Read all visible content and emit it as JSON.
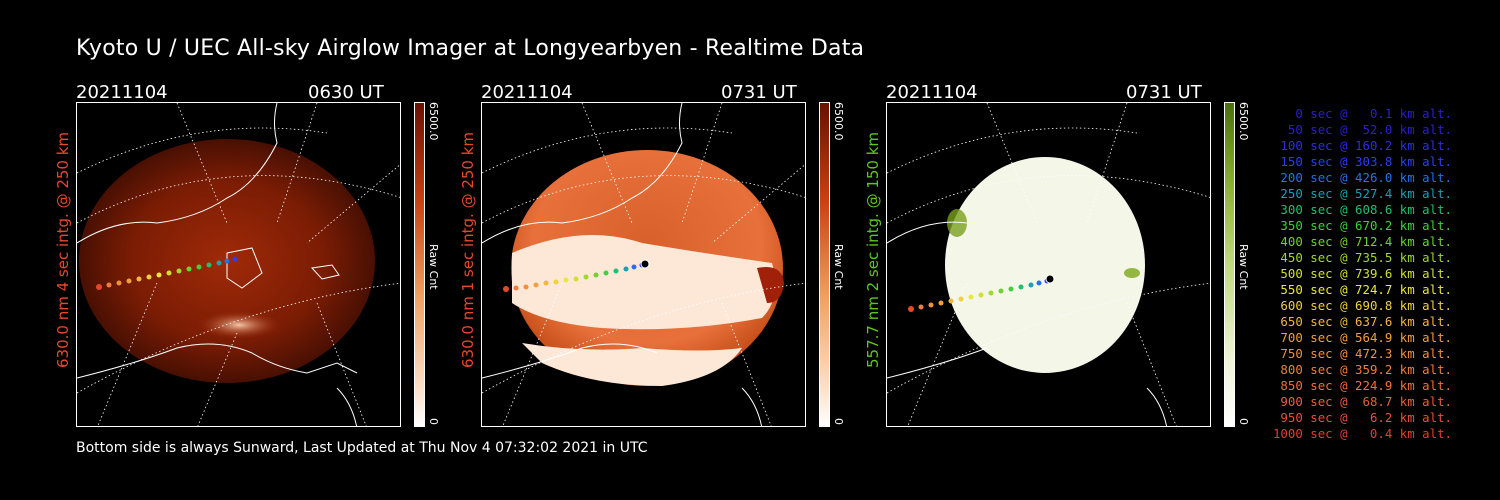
{
  "title": "Kyoto U / UEC All-sky Airglow Imager at Longyearbyen - Realtime Data",
  "footer": "Bottom side is always Sunward, Last Updated at Thu Nov  4 07:32:02 2021 in UTC",
  "panels": [
    {
      "date": "20211104",
      "time": "0630 UT",
      "ylabel": "630.0 nm 4 sec intg. @ 250 km",
      "label_color": "#e8482a",
      "cbar_max": "6500.0",
      "cbar_unit": "Raw Cnt",
      "cbar_min": "0",
      "colormap": "red"
    },
    {
      "date": "20211104",
      "time": "0731 UT",
      "ylabel": "630.0 nm 1 sec intg. @ 250 km",
      "label_color": "#e8482a",
      "cbar_max": "6500.0",
      "cbar_unit": "Raw Cnt",
      "cbar_min": "0",
      "colormap": "red"
    },
    {
      "date": "20211104",
      "time": "0731 UT",
      "ylabel": "557.7 nm 2 sec intg. @ 150 km",
      "label_color": "#5cc81e",
      "cbar_max": "6500.0",
      "cbar_unit": "Raw Cnt",
      "cbar_min": "0",
      "colormap": "green"
    }
  ],
  "legend": [
    {
      "text": "0 sec @   0.1 km alt.",
      "color": "#2a1fcf"
    },
    {
      "text": "50 sec @  52.0 km alt.",
      "color": "#2a1fcf"
    },
    {
      "text": "100 sec @ 160.2 km alt.",
      "color": "#2a2fe0"
    },
    {
      "text": "150 sec @ 303.8 km alt.",
      "color": "#2a3ff0"
    },
    {
      "text": "200 sec @ 426.0 km alt.",
      "color": "#2a6fe8"
    },
    {
      "text": "250 sec @ 527.4 km alt.",
      "color": "#1f9fb0"
    },
    {
      "text": "300 sec @ 608.6 km alt.",
      "color": "#1fbf6f"
    },
    {
      "text": "350 sec @ 670.2 km alt.",
      "color": "#3fcf3f"
    },
    {
      "text": "400 sec @ 712.4 km alt.",
      "color": "#6fd02f"
    },
    {
      "text": "450 sec @ 735.5 km alt.",
      "color": "#9fd82f"
    },
    {
      "text": "500 sec @ 739.6 km alt.",
      "color": "#cfe02f"
    },
    {
      "text": "550 sec @ 724.7 km alt.",
      "color": "#e8e83f"
    },
    {
      "text": "600 sec @ 690.8 km alt.",
      "color": "#f0d03f"
    },
    {
      "text": "650 sec @ 637.6 km alt.",
      "color": "#f0b83f"
    },
    {
      "text": "700 sec @ 564.9 km alt.",
      "color": "#f0a03f"
    },
    {
      "text": "750 sec @ 472.3 km alt.",
      "color": "#f0903f"
    },
    {
      "text": "800 sec @ 359.2 km alt.",
      "color": "#f07f3f"
    },
    {
      "text": "850 sec @ 224.9 km alt.",
      "color": "#f06f3f"
    },
    {
      "text": "900 sec @  68.7 km alt.",
      "color": "#e85f3f"
    },
    {
      "text": "950 sec @   6.2 km alt.",
      "color": "#e84f3f"
    },
    {
      "text": "1000 sec @   0.4 km alt.",
      "color": "#e0402f"
    }
  ]
}
